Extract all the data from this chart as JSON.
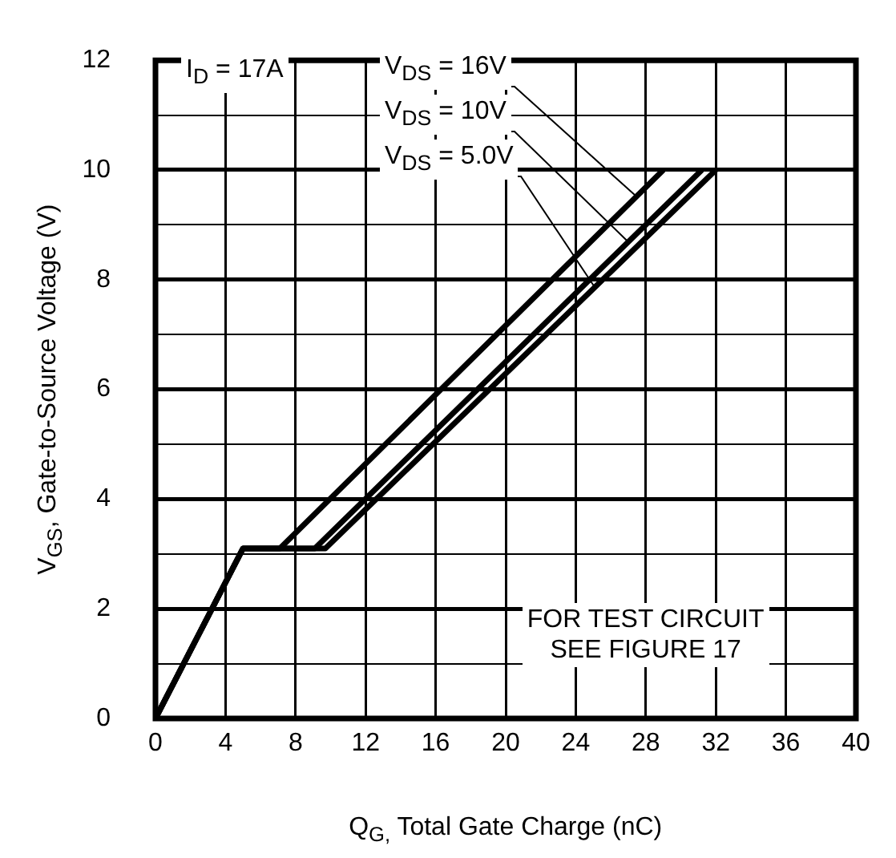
{
  "chart_data": {
    "type": "line",
    "xlabel": "Q$_{G,}$ Total Gate Charge (nC)",
    "ylabel": "V$_{GS}$, Gate-to-Source Voltage (V)",
    "series": [
      {
        "name": "V$_{DS}$ = 16V",
        "color": "#000000",
        "x": [
          0,
          5,
          7.1,
          29.0
        ],
        "values": [
          0,
          3.1,
          3.1,
          10
        ]
      },
      {
        "name": "V$_{DS}$ = 10V",
        "color": "#000000",
        "x": [
          0,
          5,
          9.1,
          31.2
        ],
        "values": [
          0,
          3.1,
          3.1,
          10
        ]
      },
      {
        "name": "V$_{DS}$ = 5.0V",
        "color": "#000000",
        "x": [
          0,
          5,
          9.7,
          32.0
        ],
        "values": [
          0,
          3.1,
          3.1,
          10
        ]
      }
    ],
    "xlim": [
      0,
      40
    ],
    "xticks": [
      0,
      4,
      8,
      12,
      16,
      20,
      24,
      28,
      32,
      36,
      40
    ],
    "ylim": [
      0,
      12
    ],
    "yticks": [
      0,
      {
        "value": 1,
        "label": null
      },
      2,
      {
        "value": 3,
        "label": null
      },
      4,
      {
        "value": 5,
        "label": null
      },
      6,
      {
        "value": 7,
        "label": null
      },
      8,
      {
        "value": 9,
        "label": null
      },
      10,
      {
        "value": 11,
        "label": null
      },
      12
    ],
    "grid": true,
    "legend": false,
    "marker": "none",
    "line_style": "solid",
    "annotations": [
      "I$_{D}$ = 17A",
      "FOR TEST CIRCUIT\nSEE FIGURE 17"
    ]
  }
}
